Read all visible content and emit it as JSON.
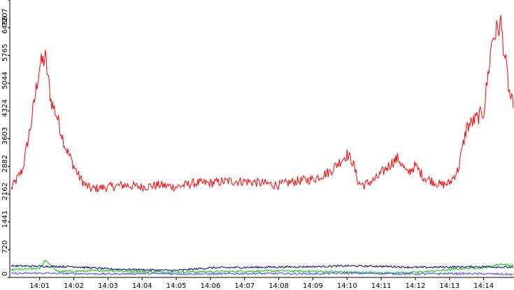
{
  "chart_data": {
    "type": "line",
    "title": "",
    "xlabel": "",
    "ylabel": "",
    "ylim": [
      0,
      7207
    ],
    "y_ticks": [
      0,
      720,
      1441,
      2162,
      2882,
      3603,
      4324,
      5044,
      5765,
      6486,
      7207
    ],
    "x_ticks": [
      "14:01",
      "14:02",
      "14:03",
      "14:04",
      "14:05",
      "14:06",
      "14:07",
      "14:08",
      "14:09",
      "14:10",
      "14:11",
      "14:12",
      "14:13",
      "14:14"
    ],
    "x_range_minutes": [
      "14:00:10",
      "14:14:52"
    ],
    "grid": false,
    "legend": "none",
    "series": [
      {
        "color": "#ff0000",
        "x": [
          "14:00:10",
          "14:00:30",
          "14:00:45",
          "14:01:00",
          "14:01:10",
          "14:01:20",
          "14:01:30",
          "14:01:45",
          "14:02:00",
          "14:02:10",
          "14:02:20",
          "14:02:30",
          "14:03:00",
          "14:03:30",
          "14:04:00",
          "14:04:30",
          "14:05:00",
          "14:05:30",
          "14:06:00",
          "14:06:30",
          "14:07:00",
          "14:07:30",
          "14:08:00",
          "14:08:30",
          "14:09:00",
          "14:09:30",
          "14:10:00",
          "14:10:10",
          "14:10:20",
          "14:10:30",
          "14:10:50",
          "14:11:00",
          "14:11:20",
          "14:11:30",
          "14:11:45",
          "14:12:00",
          "14:12:15",
          "14:12:30",
          "14:12:45",
          "14:13:00",
          "14:13:15",
          "14:13:30",
          "14:13:45",
          "14:14:00",
          "14:14:15",
          "14:14:30",
          "14:14:45",
          "14:14:52"
        ],
        "values": [
          2300,
          2800,
          4000,
          5500,
          5700,
          4600,
          4200,
          3400,
          2900,
          2600,
          2400,
          2300,
          2350,
          2400,
          2350,
          2400,
          2350,
          2450,
          2450,
          2500,
          2500,
          2450,
          2400,
          2500,
          2550,
          2750,
          3200,
          3000,
          2450,
          2400,
          2550,
          2700,
          3000,
          3100,
          2700,
          2900,
          2600,
          2500,
          2400,
          2450,
          2800,
          3900,
          4100,
          4300,
          6200,
          6600,
          4800,
          4400
        ]
      },
      {
        "color": "#00cc00",
        "x": [
          "14:00:10",
          "14:01:00",
          "14:01:10",
          "14:01:30",
          "14:02:00",
          "14:03:00",
          "14:04:00",
          "14:05:00",
          "14:06:00",
          "14:07:00",
          "14:08:00",
          "14:09:00",
          "14:10:00",
          "14:11:00",
          "14:12:00",
          "14:13:00",
          "14:13:30",
          "14:14:00",
          "14:14:30",
          "14:14:52"
        ],
        "values": [
          200,
          230,
          450,
          160,
          160,
          180,
          150,
          140,
          150,
          160,
          170,
          160,
          140,
          120,
          130,
          200,
          240,
          250,
          350,
          300
        ]
      },
      {
        "color": "#000080",
        "x": [
          "14:00:10",
          "14:01:00",
          "14:02:00",
          "14:03:00",
          "14:04:00",
          "14:05:00",
          "14:06:00",
          "14:07:00",
          "14:08:00",
          "14:09:00",
          "14:10:00",
          "14:11:00",
          "14:12:00",
          "14:13:00",
          "14:14:00",
          "14:14:52"
        ],
        "values": [
          300,
          290,
          280,
          220,
          200,
          180,
          250,
          260,
          270,
          280,
          300,
          290,
          260,
          270,
          280,
          260
        ]
      },
      {
        "color": "#4040ff",
        "x": [
          "14:00:10",
          "14:01:00",
          "14:02:00",
          "14:03:00",
          "14:04:00",
          "14:05:00",
          "14:06:00",
          "14:07:00",
          "14:08:00",
          "14:09:00",
          "14:10:00",
          "14:11:00",
          "14:12:00",
          "14:13:00",
          "14:14:00",
          "14:14:52"
        ],
        "values": [
          100,
          110,
          100,
          90,
          100,
          95,
          90,
          100,
          100,
          95,
          110,
          100,
          90,
          100,
          95,
          80
        ]
      }
    ]
  }
}
